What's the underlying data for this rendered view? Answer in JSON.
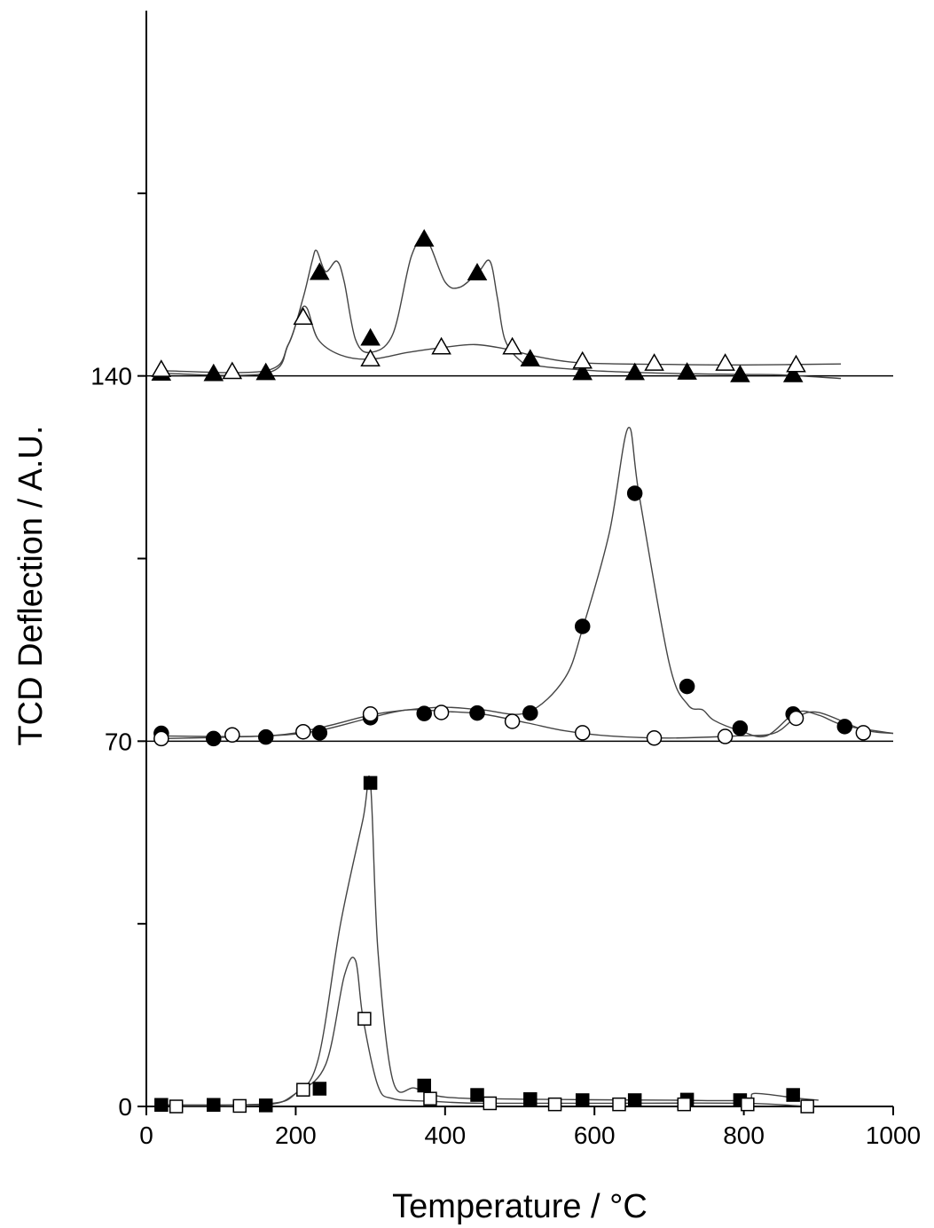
{
  "chart_data": {
    "type": "line",
    "title": "",
    "xlabel": "Temperature / °C",
    "ylabel": "TCD Deflection / A.U.",
    "xlim": [
      0,
      1000
    ],
    "ylim": [
      0,
      210
    ],
    "xticks": [
      0,
      200,
      400,
      600,
      800,
      1000
    ],
    "xtick_labels": [
      "0",
      "200",
      "400",
      "600",
      "800",
      "1000"
    ],
    "yticks": [
      0,
      35,
      70,
      105,
      140,
      175
    ],
    "ytick_labels": [
      "0",
      "",
      "70",
      "",
      "140",
      ""
    ],
    "baselines": [
      0,
      70,
      140
    ],
    "grid": false,
    "legend": "none",
    "series": [
      {
        "marker": "square",
        "filled": true,
        "x": [
          20,
          160,
          200,
          230,
          260,
          290,
          300,
          310,
          330,
          360,
          400,
          500,
          700,
          800,
          815,
          870,
          900
        ],
        "y": [
          0.3,
          0.5,
          2.5,
          9,
          35,
          55,
          62,
          30,
          5,
          3.5,
          1.8,
          1.4,
          1.2,
          1.2,
          2.5,
          1.6,
          1.2
        ],
        "markers_x": [
          20,
          90,
          160,
          232,
          300,
          372,
          443,
          514,
          584,
          654,
          724,
          795,
          866
        ],
        "markers_y": [
          0.3,
          0.3,
          0.2,
          3.4,
          62,
          4,
          2.2,
          1.4,
          1.2,
          1.2,
          1.3,
          1.2,
          2.2
        ]
      },
      {
        "marker": "square",
        "filled": false,
        "x": [
          40,
          160,
          200,
          240,
          265,
          280,
          290,
          310,
          330,
          380,
          450,
          600,
          800,
          885
        ],
        "y": [
          0,
          0.3,
          2.5,
          8,
          25,
          28,
          17,
          4,
          1.5,
          1,
          0.6,
          0.6,
          0.6,
          0
        ],
        "markers_x": [
          40,
          125,
          210,
          292,
          380,
          460,
          547,
          633,
          720,
          805,
          885
        ],
        "markers_y": [
          0,
          0.1,
          3.2,
          16.8,
          1.5,
          0.6,
          0.4,
          0.4,
          0.4,
          0.4,
          0
        ]
      },
      {
        "marker": "circle",
        "filled": true,
        "x": [
          20,
          160,
          230,
          300,
          350,
          400,
          450,
          510,
          560,
          585,
          620,
          645,
          660,
          700,
          725,
          745,
          760,
          795,
          830,
          870,
          900,
          935,
          1000
        ],
        "y": [
          71,
          71,
          72.5,
          75,
          76,
          76.5,
          76,
          75.5,
          82,
          92,
          110,
          130,
          117,
          85,
          77,
          76,
          74,
          72,
          71,
          75.5,
          75,
          73,
          71.5
        ],
        "markers_x": [
          20,
          90,
          160,
          232,
          300,
          372,
          443,
          514,
          584,
          654,
          724,
          795,
          866,
          935
        ],
        "markers_y": [
          71.5,
          70.5,
          70.8,
          71.6,
          74.5,
          75.3,
          75.4,
          75.4,
          92,
          117.5,
          80.5,
          72.5,
          75.2,
          72.8
        ]
      },
      {
        "marker": "circle",
        "filled": false,
        "x": [
          20,
          160,
          230,
          300,
          350,
          400,
          450,
          510,
          560,
          620,
          700,
          790,
          840,
          870,
          900,
          960,
          1000
        ],
        "y": [
          70.5,
          71,
          72,
          74.5,
          76,
          75.7,
          75.2,
          73.5,
          72,
          71,
          70.6,
          71,
          71.5,
          74.5,
          75.5,
          72.2,
          71.5
        ],
        "markers_x": [
          20,
          115,
          210,
          300,
          395,
          490,
          584,
          680,
          775,
          870,
          960
        ],
        "markers_y": [
          70.5,
          71.2,
          71.8,
          75.2,
          75.5,
          73.8,
          71.6,
          70.6,
          70.9,
          74.4,
          71.6
        ]
      },
      {
        "marker": "triangle",
        "filled": true,
        "x": [
          20,
          160,
          190,
          210,
          222,
          228,
          240,
          255,
          265,
          280,
          300,
          330,
          355,
          375,
          400,
          420,
          445,
          460,
          470,
          480,
          500,
          520,
          600,
          700,
          800,
          850,
          930
        ],
        "y": [
          140.5,
          140.5,
          146,
          155,
          162,
          164,
          160,
          162,
          158,
          147,
          144.5,
          148,
          163,
          166,
          158,
          157,
          160,
          162,
          155,
          147,
          143,
          142,
          141,
          140.5,
          140.3,
          140.2,
          139.5
        ],
        "markers_x": [
          20,
          90,
          160,
          232,
          300,
          372,
          443,
          514,
          584,
          654,
          724,
          795,
          866
        ],
        "markers_y": [
          140.5,
          140.4,
          140.6,
          159.8,
          147.2,
          166.2,
          159.7,
          143.2,
          140.6,
          140.6,
          140.7,
          140.2,
          140.2
        ]
      },
      {
        "marker": "triangle",
        "filled": false,
        "x": [
          20,
          160,
          190,
          205,
          215,
          230,
          260,
          300,
          350,
          400,
          440,
          480,
          520,
          560,
          600,
          700,
          800,
          930
        ],
        "y": [
          141,
          141,
          146,
          152,
          153,
          147,
          144,
          143.2,
          144.5,
          145.5,
          146,
          145.2,
          143.8,
          142.8,
          142.4,
          142.2,
          142.1,
          142.3
        ],
        "markers_x": [
          20,
          115,
          210,
          300,
          395,
          490,
          584,
          680,
          775,
          870
        ],
        "markers_y": [
          141.2,
          140.8,
          151.2,
          143.2,
          145.5,
          145.5,
          142.8,
          142.4,
          142.4,
          142.1
        ]
      }
    ]
  }
}
